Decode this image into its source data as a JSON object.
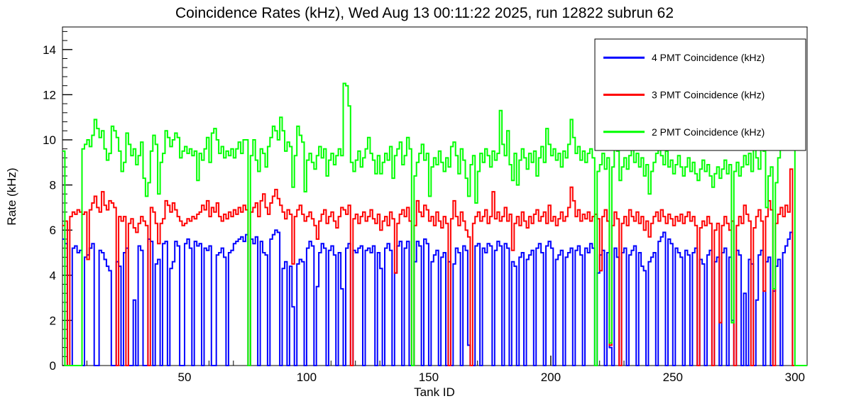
{
  "chart_data": {
    "type": "line",
    "style": "step-histogram",
    "title": "Coincidence Rates (kHz), Wed Aug 13 00:11:22 2025, run 12822 subrun 62",
    "xlabel": "Tank ID",
    "ylabel": "Rate (kHz)",
    "xlim": [
      0,
      305
    ],
    "ylim": [
      0,
      15
    ],
    "grid": false,
    "legend_position": "top-right",
    "axes": {
      "x_major": [
        50,
        100,
        150,
        200,
        250,
        300
      ],
      "x_minor_step": 10,
      "y_major": [
        0,
        2,
        4,
        6,
        8,
        10,
        12,
        14
      ],
      "y_minor_step": 0.4
    },
    "series": [
      {
        "name": "4 PMT Coincidence (kHz)",
        "color": "#0000ff",
        "values": [
          5.6,
          5.4,
          0,
          0,
          5.2,
          5.3,
          5.0,
          5.1,
          0,
          4.8,
          4.9,
          5.2,
          5.4,
          0,
          0,
          5.1,
          5.0,
          4.7,
          4.4,
          4.2,
          0,
          0,
          4.6,
          4.4,
          0,
          5.0,
          5.2,
          0,
          0,
          2.9,
          0,
          5.3,
          5.1,
          0,
          0,
          5.6,
          5.5,
          0,
          4.5,
          4.7,
          0,
          5.4,
          5.5,
          0,
          4.3,
          4.6,
          5.5,
          5.3,
          0,
          0,
          5.4,
          5.6,
          5.2,
          0,
          5.5,
          5.3,
          5.4,
          0,
          5.2,
          5.1,
          5.3,
          0,
          0,
          4.9,
          5.0,
          5.2,
          4.8,
          0,
          5.0,
          5.1,
          5.4,
          5.5,
          5.6,
          5.7,
          5.5,
          5.8,
          0,
          5.6,
          5.4,
          5.7,
          0,
          5.5,
          5.0,
          4.9,
          0,
          5.6,
          5.8,
          6.0,
          5.9,
          0,
          4.3,
          4.6,
          0,
          4.4,
          2.6,
          0,
          4.5,
          4.7,
          4.6,
          0,
          5.2,
          5.5,
          5.3,
          0,
          3.5,
          5.0,
          5.4,
          5.2,
          0,
          5.1,
          5.3,
          4.9,
          0,
          5.0,
          3.4,
          0,
          5.2,
          5.4,
          0,
          5.1,
          5.0,
          5.2,
          5.3,
          0,
          5.1,
          5.2,
          5.0,
          5.3,
          0,
          5.0,
          4.3,
          0,
          5.2,
          5.4,
          5.1,
          0,
          4.1,
          5.3,
          5.5,
          0,
          5.2,
          5.5,
          0,
          0,
          4.6,
          5.5,
          5.3,
          0,
          5.6,
          5.4,
          0,
          4.6,
          4.9,
          5.1,
          0,
          4.8,
          5.0,
          0,
          4.6,
          0,
          4.5,
          5.2,
          5.0,
          0,
          5.3,
          5.1,
          0.9,
          0,
          0,
          5.3,
          5.4,
          0,
          5.2,
          5.0,
          5.4,
          5.3,
          0,
          5.1,
          5.5,
          5.3,
          0,
          5.4,
          5.2,
          0,
          4.6,
          4.4,
          0,
          4.8,
          5.0,
          0,
          4.7,
          4.9,
          5.1,
          0,
          5.2,
          5.4,
          5.0,
          0,
          5.3,
          5.5,
          5.2,
          0,
          4.7,
          4.9,
          5.1,
          0,
          4.8,
          5.0,
          5.2,
          0,
          5.1,
          5.3,
          4.9,
          0,
          5.2,
          5.0,
          5.4,
          5.2,
          0,
          4.1,
          4.9,
          5.1,
          0,
          5.0,
          0.8,
          0,
          5.2,
          4.8,
          0,
          5.0,
          5.2,
          0,
          4.9,
          5.1,
          5.3,
          0,
          5.0,
          4.4,
          4.2,
          0,
          4.6,
          4.8,
          5.0,
          0,
          5.5,
          5.7,
          5.9,
          0,
          5.6,
          5.4,
          0,
          5.2,
          5.0,
          4.8,
          0,
          5.1,
          4.9,
          0,
          5.0,
          5.2,
          0,
          4.7,
          4.5,
          0,
          4.9,
          5.1,
          0,
          4.6,
          4.8,
          0,
          5.0,
          5.2,
          0,
          4.8,
          2.0,
          0,
          5.1,
          4.9,
          0,
          3.2,
          0,
          4.7,
          4.5,
          0,
          2.9,
          4.9,
          5.1,
          0,
          4.6,
          4.8,
          0,
          3.3,
          4.4,
          4.7,
          0,
          5.0,
          5.3,
          5.6,
          5.9,
          0,
          0,
          0,
          0,
          0,
          0
        ]
      },
      {
        "name": "3 PMT Coincidence (kHz)",
        "color": "#ff0000",
        "values": [
          6.2,
          6.4,
          0,
          6.6,
          6.8,
          6.7,
          6.9,
          6.8,
          6.7,
          6.8,
          4.7,
          6.9,
          7.2,
          7.5,
          7.0,
          6.8,
          7.7,
          7.1,
          6.9,
          7.3,
          7.2,
          7.0,
          0,
          6.6,
          6.4,
          6.6,
          0,
          6.3,
          6.5,
          6.1,
          5.9,
          6.3,
          6.6,
          6.4,
          6.2,
          0,
          7.0,
          6.8,
          6.3,
          5.4,
          6.3,
          6.5,
          7.3,
          7.1,
          6.8,
          7.2,
          6.9,
          6.6,
          6.4,
          6.2,
          6.3,
          6.5,
          6.4,
          6.6,
          6.5,
          6.7,
          6.8,
          7.1,
          6.9,
          7.3,
          6.6,
          7.0,
          6.8,
          7.2,
          6.6,
          6.4,
          6.7,
          6.5,
          6.8,
          6.6,
          6.9,
          6.7,
          7.0,
          6.8,
          7.1,
          6.9,
          0,
          6.8,
          7.0,
          7.2,
          6.6,
          7.3,
          7.6,
          7.0,
          6.7,
          7.2,
          7.5,
          7.8,
          7.4,
          7.1,
          6.8,
          6.5,
          6.9,
          6.7,
          4.5,
          6.6,
          6.9,
          7.1,
          6.7,
          6.4,
          6.6,
          6.8,
          6.5,
          6.2,
          5.6,
          6.4,
          6.7,
          6.9,
          6.3,
          6.6,
          6.8,
          6.4,
          6.1,
          6.6,
          7.0,
          6.9,
          6.7,
          7.1,
          0,
          6.5,
          6.7,
          6.3,
          6.6,
          6.8,
          6.4,
          6.6,
          6.9,
          6.5,
          6.3,
          6.7,
          6.0,
          6.4,
          6.6,
          6.2,
          6.8,
          6.5,
          4.1,
          6.3,
          6.7,
          6.9,
          6.6,
          7.0,
          6.4,
          0,
          6.2,
          7.3,
          6.8,
          6.6,
          7.1,
          6.9,
          6.4,
          6.6,
          6.2,
          6.8,
          6.4,
          6.1,
          6.6,
          6.3,
          0,
          6.5,
          7.3,
          6.6,
          6.2,
          6.8,
          6.4,
          6.0,
          5.7,
          0,
          6.3,
          6.6,
          6.8,
          6.4,
          6.6,
          6.9,
          6.3,
          6.6,
          7.7,
          6.5,
          6.8,
          6.4,
          6.6,
          7.0,
          6.4,
          6.7,
          5.1,
          6.3,
          6.6,
          6.2,
          6.8,
          6.4,
          6.1,
          6.6,
          6.3,
          6.7,
          6.9,
          6.4,
          6.6,
          6.8,
          6.3,
          7.1,
          6.4,
          6.6,
          6.2,
          6.5,
          6.8,
          6.4,
          6.6,
          7.0,
          7.9,
          7.3,
          6.6,
          6.9,
          6.4,
          6.7,
          6.5,
          6.8,
          6.4,
          6.6,
          6.7,
          6.5,
          4.2,
          6.6,
          6.9,
          6.4,
          0.9,
          6.2,
          6.8,
          6.5,
          0,
          6.3,
          6.6,
          6.2,
          6.9,
          6.6,
          6.4,
          6.8,
          6.3,
          6.6,
          6.0,
          6.4,
          5.7,
          6.3,
          6.6,
          6.8,
          6.4,
          6.9,
          6.6,
          6.3,
          6.7,
          6.5,
          6.2,
          6.6,
          6.4,
          6.7,
          6.3,
          6.6,
          6.8,
          6.4,
          6.6,
          6.2,
          0,
          6.1,
          6.4,
          6.2,
          6.6,
          6.3,
          0,
          6.0,
          6.3,
          1.9,
          6.2,
          6.6,
          6.3,
          6.0,
          6.4,
          0,
          6.2,
          6.6,
          6.3,
          7.1,
          6.7,
          6.4,
          0,
          6.1,
          6.6,
          6.9,
          6.4,
          3.3,
          6.6,
          7.3,
          6.9,
          0,
          6.3,
          6.7,
          7.0,
          6.6,
          7.1,
          6.8,
          8.7,
          0,
          0,
          0,
          0,
          0,
          0
        ]
      },
      {
        "name": "2 PMT Coincidence (kHz)",
        "color": "#00ff00",
        "values": [
          9.5,
          0,
          0,
          0,
          0,
          0,
          0,
          0,
          9.6,
          9.8,
          10.0,
          9.7,
          10.2,
          10.9,
          10.5,
          10.1,
          10.4,
          9.6,
          9.1,
          9.4,
          10.6,
          10.4,
          10.1,
          9.5,
          8.6,
          9.0,
          10.3,
          9.8,
          9.3,
          9.6,
          8.9,
          9.3,
          9.9,
          8.3,
          7.5,
          8.1,
          9.5,
          10.2,
          9.8,
          7.6,
          9.0,
          9.4,
          10.4,
          10.1,
          9.7,
          10.0,
          10.3,
          10.1,
          9.2,
          9.5,
          9.7,
          9.4,
          9.6,
          9.3,
          9.5,
          8.2,
          9.4,
          9.1,
          9.6,
          10.1,
          9.0,
          10.3,
          10.5,
          10.0,
          9.4,
          9.7,
          9.2,
          9.5,
          9.3,
          9.6,
          9.2,
          9.6,
          9.9,
          9.4,
          10.0,
          10.0,
          0,
          9.3,
          10.0,
          9.1,
          8.6,
          9.6,
          9.4,
          8.8,
          9.7,
          10.1,
          10.6,
          10.4,
          10.0,
          11.0,
          10.4,
          9.5,
          9.9,
          9.7,
          7.9,
          9.3,
          10.6,
          10.2,
          9.9,
          7.7,
          9.1,
          9.4,
          9.0,
          8.7,
          9.3,
          9.7,
          9.2,
          9.6,
          8.4,
          9.1,
          9.4,
          8.9,
          9.3,
          9.6,
          9.3,
          12.5,
          12.4,
          11.5,
          9.0,
          8.6,
          9.1,
          9.5,
          8.8,
          9.2,
          9.6,
          10.1,
          9.4,
          9.1,
          8.5,
          9.3,
          8.5,
          9.0,
          9.4,
          9.1,
          9.7,
          8.3,
          9.3,
          9.6,
          9.9,
          8.9,
          9.3,
          10.1,
          9.6,
          0,
          8.4,
          9.0,
          9.4,
          9.8,
          9.1,
          9.4,
          7.5,
          8.8,
          9.2,
          8.9,
          9.5,
          9.0,
          8.6,
          9.2,
          8.8,
          9.7,
          9.9,
          9.3,
          8.5,
          9.6,
          9.1,
          8.3,
          7.5,
          8.9,
          9.3,
          7.2,
          8.6,
          9.4,
          9.0,
          9.6,
          9.3,
          8.8,
          9.5,
          9.1,
          9.4,
          11.3,
          9.8,
          9.3,
          10.4,
          8.9,
          8.2,
          9.4,
          8.0,
          9.1,
          9.6,
          9.2,
          8.7,
          9.4,
          9.0,
          9.5,
          8.4,
          9.2,
          9.7,
          9.0,
          10.5,
          9.8,
          9.3,
          9.6,
          9.1,
          9.4,
          8.8,
          9.5,
          9.2,
          9.8,
          10.9,
          10.1,
          9.4,
          9.7,
          9.1,
          9.5,
          9.0,
          9.4,
          9.6,
          9.2,
          0,
          8.6,
          8.9,
          9.4,
          8.7,
          9.2,
          1.0,
          8.8,
          10.6,
          9.5,
          8.2,
          8.8,
          9.2,
          8.7,
          9.3,
          9.6,
          9.0,
          9.4,
          8.8,
          9.2,
          8.4,
          8.9,
          7.6,
          8.6,
          9.0,
          9.4,
          9.8,
          9.3,
          8.9,
          9.5,
          8.8,
          9.1,
          8.5,
          8.9,
          9.3,
          8.8,
          8.4,
          8.8,
          9.2,
          8.6,
          9.0,
          8.5,
          8.2,
          8.7,
          9.1,
          8.6,
          8.9,
          8.4,
          7.9,
          8.5,
          8.8,
          8.3,
          8.7,
          9.1,
          8.5,
          8.9,
          1.9,
          8.6,
          9.0,
          8.4,
          8.8,
          9.3,
          8.9,
          9.4,
          8.6,
          9.8,
          9.2,
          8.7,
          10.1,
          9.5,
          7.0,
          8.4,
          8.8,
          3.4,
          8.1,
          9.2,
          9.6,
          10.0,
          10.4,
          11.1,
          10.8,
          10.5,
          0,
          0,
          0,
          0,
          0
        ]
      }
    ]
  }
}
